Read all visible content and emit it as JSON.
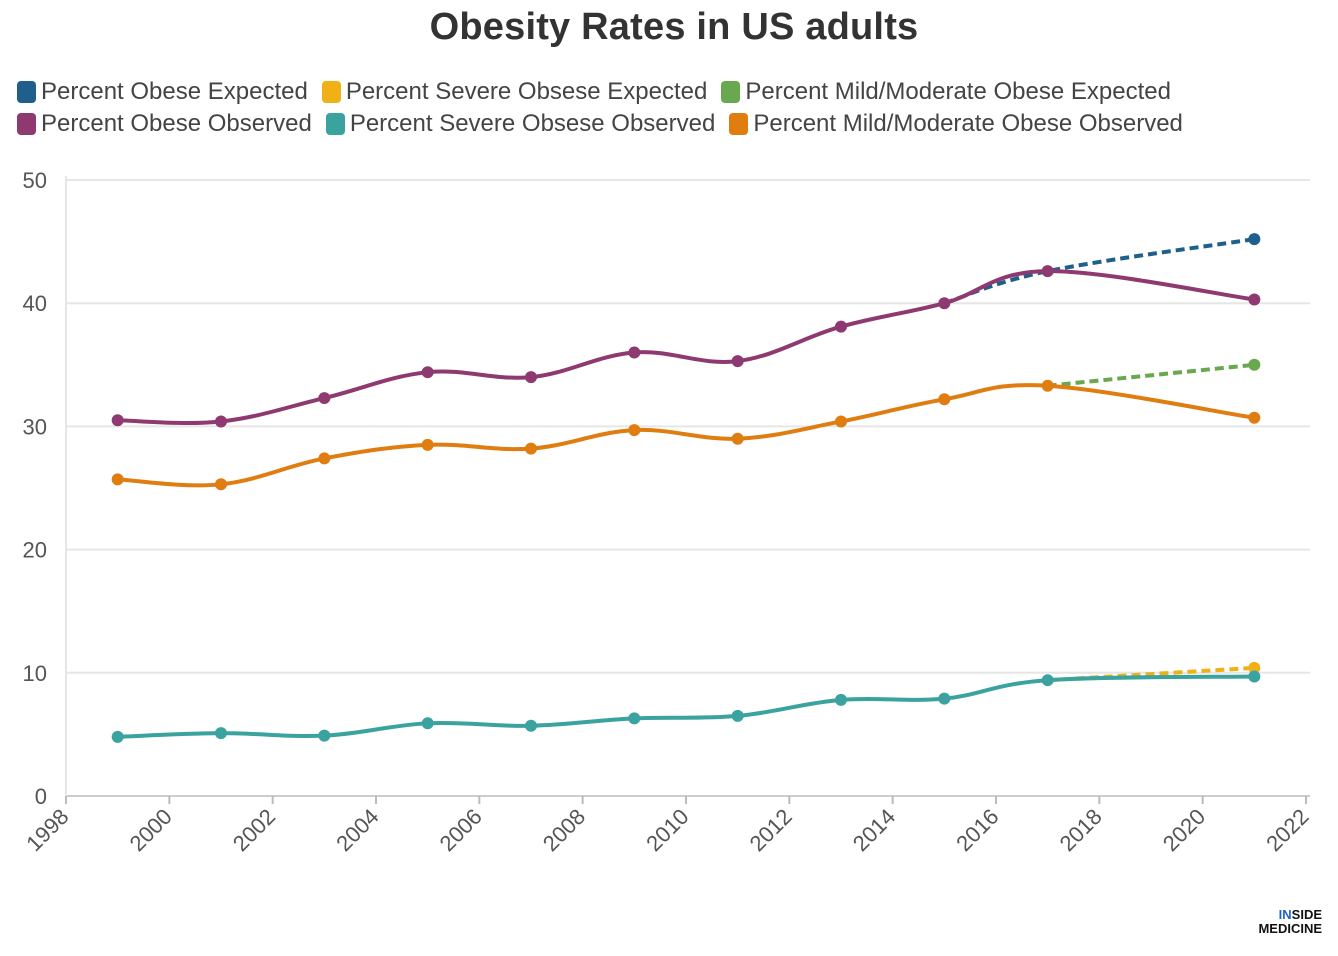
{
  "chart_data": {
    "type": "line",
    "title": "Obesity Rates in US adults",
    "xlabel": "",
    "ylabel": "",
    "xlim": [
      1998,
      2022
    ],
    "ylim": [
      0,
      50
    ],
    "x_ticks": [
      "1998",
      "2000",
      "2002",
      "2004",
      "2006",
      "2008",
      "2010",
      "2012",
      "2014",
      "2016",
      "2018",
      "2020",
      "2022"
    ],
    "y_ticks": [
      "0",
      "10",
      "20",
      "30",
      "40",
      "50"
    ],
    "grid": true,
    "legend_position": "top",
    "series": [
      {
        "name": "Percent Obese Expected",
        "color": "#1f5f8b",
        "style": "dashed",
        "x": [
          2015,
          2017,
          2021
        ],
        "y": [
          40.0,
          42.6,
          45.2
        ]
      },
      {
        "name": "Percent Severe Obsese Expected",
        "color": "#f0b116",
        "style": "dashed",
        "x": [
          2017,
          2021
        ],
        "y": [
          9.4,
          10.4
        ]
      },
      {
        "name": "Percent Mild/Moderate Obese Expected",
        "color": "#6aa84f",
        "style": "dashed",
        "x": [
          2017,
          2021
        ],
        "y": [
          33.3,
          35.0
        ]
      },
      {
        "name": "Percent Obese Observed",
        "color": "#8e3a71",
        "style": "solid",
        "x": [
          1999,
          2001,
          2003,
          2005,
          2007,
          2009,
          2011,
          2013,
          2015,
          2017,
          2021
        ],
        "y": [
          30.5,
          30.4,
          32.3,
          34.4,
          34.0,
          36.0,
          35.3,
          38.1,
          40.0,
          42.6,
          40.3
        ]
      },
      {
        "name": "Percent Severe Obsese Observed",
        "color": "#3aa39f",
        "style": "solid",
        "x": [
          1999,
          2001,
          2003,
          2005,
          2007,
          2009,
          2011,
          2013,
          2015,
          2017,
          2021
        ],
        "y": [
          4.8,
          5.1,
          4.9,
          5.9,
          5.7,
          6.3,
          6.5,
          7.8,
          7.9,
          9.4,
          9.7
        ]
      },
      {
        "name": "Percent Mild/Moderate Obese Observed",
        "color": "#e07d10",
        "style": "solid",
        "x": [
          1999,
          2001,
          2003,
          2005,
          2007,
          2009,
          2011,
          2013,
          2015,
          2017,
          2021
        ],
        "y": [
          25.7,
          25.3,
          27.4,
          28.5,
          28.2,
          29.7,
          29.0,
          30.4,
          32.2,
          33.3,
          30.7
        ]
      }
    ]
  },
  "legend_rows": [
    [
      0,
      1,
      2
    ],
    [
      3,
      4,
      5
    ]
  ],
  "logo": {
    "line1_accent": "IN",
    "line1_rest": "SIDE",
    "line2": "MEDICINE"
  }
}
